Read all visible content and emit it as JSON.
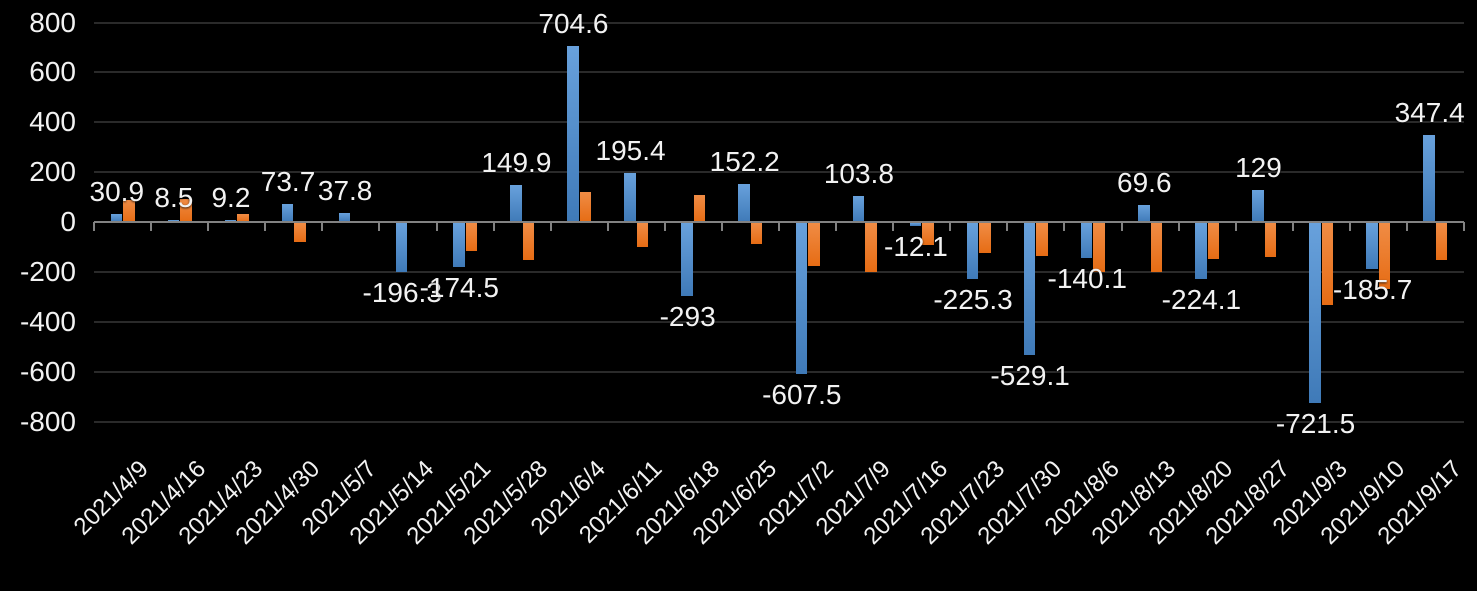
{
  "chart_data": {
    "type": "bar",
    "title": "",
    "background": "#000000",
    "grid": true,
    "legend_position": "none",
    "categories": [
      "2021/4/9",
      "2021/4/16",
      "2021/4/23",
      "2021/4/30",
      "2021/5/7",
      "2021/5/14",
      "2021/5/21",
      "2021/5/28",
      "2021/6/4",
      "2021/6/11",
      "2021/6/18",
      "2021/6/25",
      "2021/7/2",
      "2021/7/9",
      "2021/7/16",
      "2021/7/23",
      "2021/7/30",
      "2021/8/6",
      "2021/8/13",
      "2021/8/20",
      "2021/8/27",
      "2021/9/3",
      "2021/9/10",
      "2021/9/17"
    ],
    "series": [
      {
        "name": "blue-series",
        "color": "#5b9bd5",
        "labels_visible": true,
        "values": [
          30.9,
          8.5,
          9.2,
          73.7,
          37.8,
          -196.3,
          -174.5,
          149.9,
          704.6,
          195.4,
          -293,
          152.2,
          -607.5,
          103.8,
          -12.1,
          -225.3,
          -529.1,
          -140.1,
          69.6,
          -224.1,
          129,
          -721.5,
          -185.7,
          347.4
        ],
        "labels": [
          "30.9",
          "8.5",
          "9.2",
          "73.7",
          "37.8",
          "-196.3",
          "-174.5",
          "149.9",
          "704.6",
          "195.4",
          "-293",
          "152.2",
          "-607.5",
          "103.8",
          "-12.1",
          "-225.3",
          "-529.1",
          "-140.1",
          "69.6",
          "-224.1",
          "129",
          "-721.5",
          "-185.7",
          "347.4"
        ]
      },
      {
        "name": "orange-series",
        "color": "#ed7d31",
        "labels_visible": false,
        "estimated": true,
        "values": [
          87,
          93,
          32,
          -76,
          0,
          4,
          -111,
          -147,
          122,
          -98,
          109,
          -84,
          -171,
          -198,
          -90,
          -122,
          -131,
          -195,
          -195,
          -144,
          -135,
          -328,
          -265,
          -147
        ]
      }
    ],
    "y_axis": {
      "min": -800,
      "max": 800,
      "step": 200,
      "tick_labels": [
        "800",
        "600",
        "400",
        "200",
        "0",
        "-200",
        "-400",
        "-600",
        "-800"
      ]
    }
  }
}
